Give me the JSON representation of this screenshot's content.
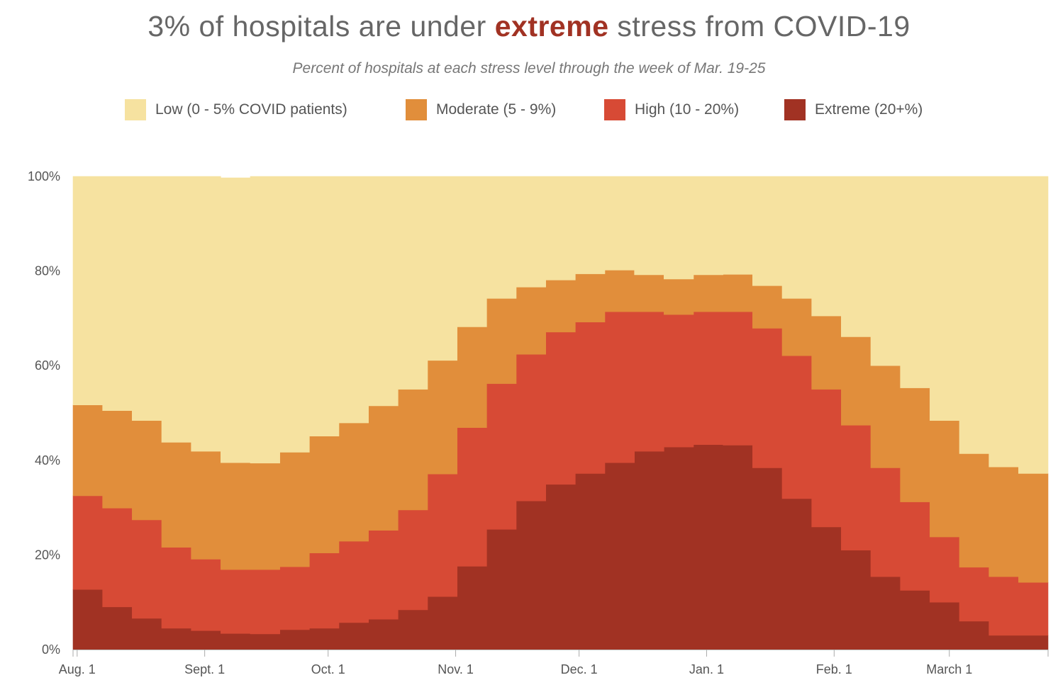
{
  "title": {
    "prefix": "3% of hospitals are under ",
    "highlight": "extreme",
    "suffix": " stress from COVID-19"
  },
  "subtitle": "Percent of hospitals at each stress level through the week of Mar. 19-25",
  "colors": {
    "low": "#f6e2a0",
    "moderate": "#e18e3b",
    "high": "#d74a35",
    "extreme": "#a13223",
    "highlight_text": "#a13223"
  },
  "chart_data": {
    "type": "area",
    "stacked": true,
    "step": true,
    "percent_of_total": true,
    "title": "3% of hospitals are under extreme stress from COVID-19",
    "subtitle": "Percent of hospitals at each stress level through the week of Mar. 19-25",
    "x_start": "2020-07-31",
    "x_end": "2021-03-25",
    "x_ticks": [
      {
        "label": "Aug. 1",
        "date": "2020-08-01"
      },
      {
        "label": "Sept. 1",
        "date": "2020-09-01"
      },
      {
        "label": "Oct. 1",
        "date": "2020-10-01"
      },
      {
        "label": "Nov. 1",
        "date": "2020-11-01"
      },
      {
        "label": "Dec. 1",
        "date": "2020-12-01"
      },
      {
        "label": "Jan. 1",
        "date": "2021-01-01"
      },
      {
        "label": "Feb. 1",
        "date": "2021-02-01"
      },
      {
        "label": "March 1",
        "date": "2021-03-01"
      }
    ],
    "y_ticks": [
      {
        "label": "0%",
        "value": 0
      },
      {
        "label": "20%",
        "value": 20
      },
      {
        "label": "40%",
        "value": 40
      },
      {
        "label": "60%",
        "value": 60
      },
      {
        "label": "80%",
        "value": 80
      },
      {
        "label": "100%",
        "value": 100
      }
    ],
    "ylim": [
      0,
      100
    ],
    "grid": false,
    "legend_position": "top",
    "series": [
      {
        "name": "Low (0 - 5% COVID patients)",
        "key": "low",
        "values": [
          48.3,
          49.5,
          51.6,
          56.2,
          58.1,
          60.2,
          60.6,
          58.3,
          54.9,
          52.1,
          48.5,
          45.0,
          38.9,
          31.8,
          25.8,
          23.4,
          21.9,
          20.6,
          19.8,
          20.8,
          21.7,
          20.8,
          20.7,
          23.1,
          25.8,
          29.5,
          33.9,
          40.0,
          44.7,
          51.6,
          58.6,
          61.4,
          62.8
        ]
      },
      {
        "name": "Moderate (5 - 9%)",
        "key": "moderate",
        "values": [
          19.2,
          20.6,
          21.0,
          22.2,
          22.8,
          22.6,
          22.5,
          24.2,
          24.7,
          25.0,
          26.3,
          25.5,
          24.0,
          21.3,
          18.0,
          14.2,
          11.0,
          10.2,
          8.8,
          7.8,
          7.5,
          7.8,
          7.9,
          9.0,
          12.1,
          15.5,
          18.7,
          21.6,
          24.1,
          24.6,
          24.0,
          23.2,
          23.0
        ]
      },
      {
        "name": "High (10 - 20%)",
        "key": "high",
        "values": [
          19.8,
          20.9,
          20.8,
          17.1,
          15.1,
          13.5,
          13.6,
          13.3,
          15.9,
          17.2,
          18.8,
          21.1,
          25.9,
          29.3,
          30.8,
          31.0,
          32.2,
          32.0,
          31.9,
          29.5,
          28.0,
          28.1,
          28.2,
          29.5,
          30.2,
          29.1,
          26.4,
          23.0,
          18.7,
          13.8,
          11.4,
          12.4,
          11.2
        ]
      },
      {
        "name": "Extreme (20+%)",
        "key": "extreme",
        "values": [
          12.7,
          9.0,
          6.6,
          4.5,
          4.0,
          3.4,
          3.3,
          4.2,
          4.5,
          5.7,
          6.4,
          8.4,
          11.2,
          17.6,
          25.4,
          31.4,
          34.9,
          37.2,
          39.5,
          41.9,
          42.8,
          43.3,
          43.2,
          38.4,
          31.9,
          25.9,
          21.0,
          15.4,
          12.5,
          10.0,
          6.0,
          3.0,
          3.0
        ]
      }
    ]
  }
}
